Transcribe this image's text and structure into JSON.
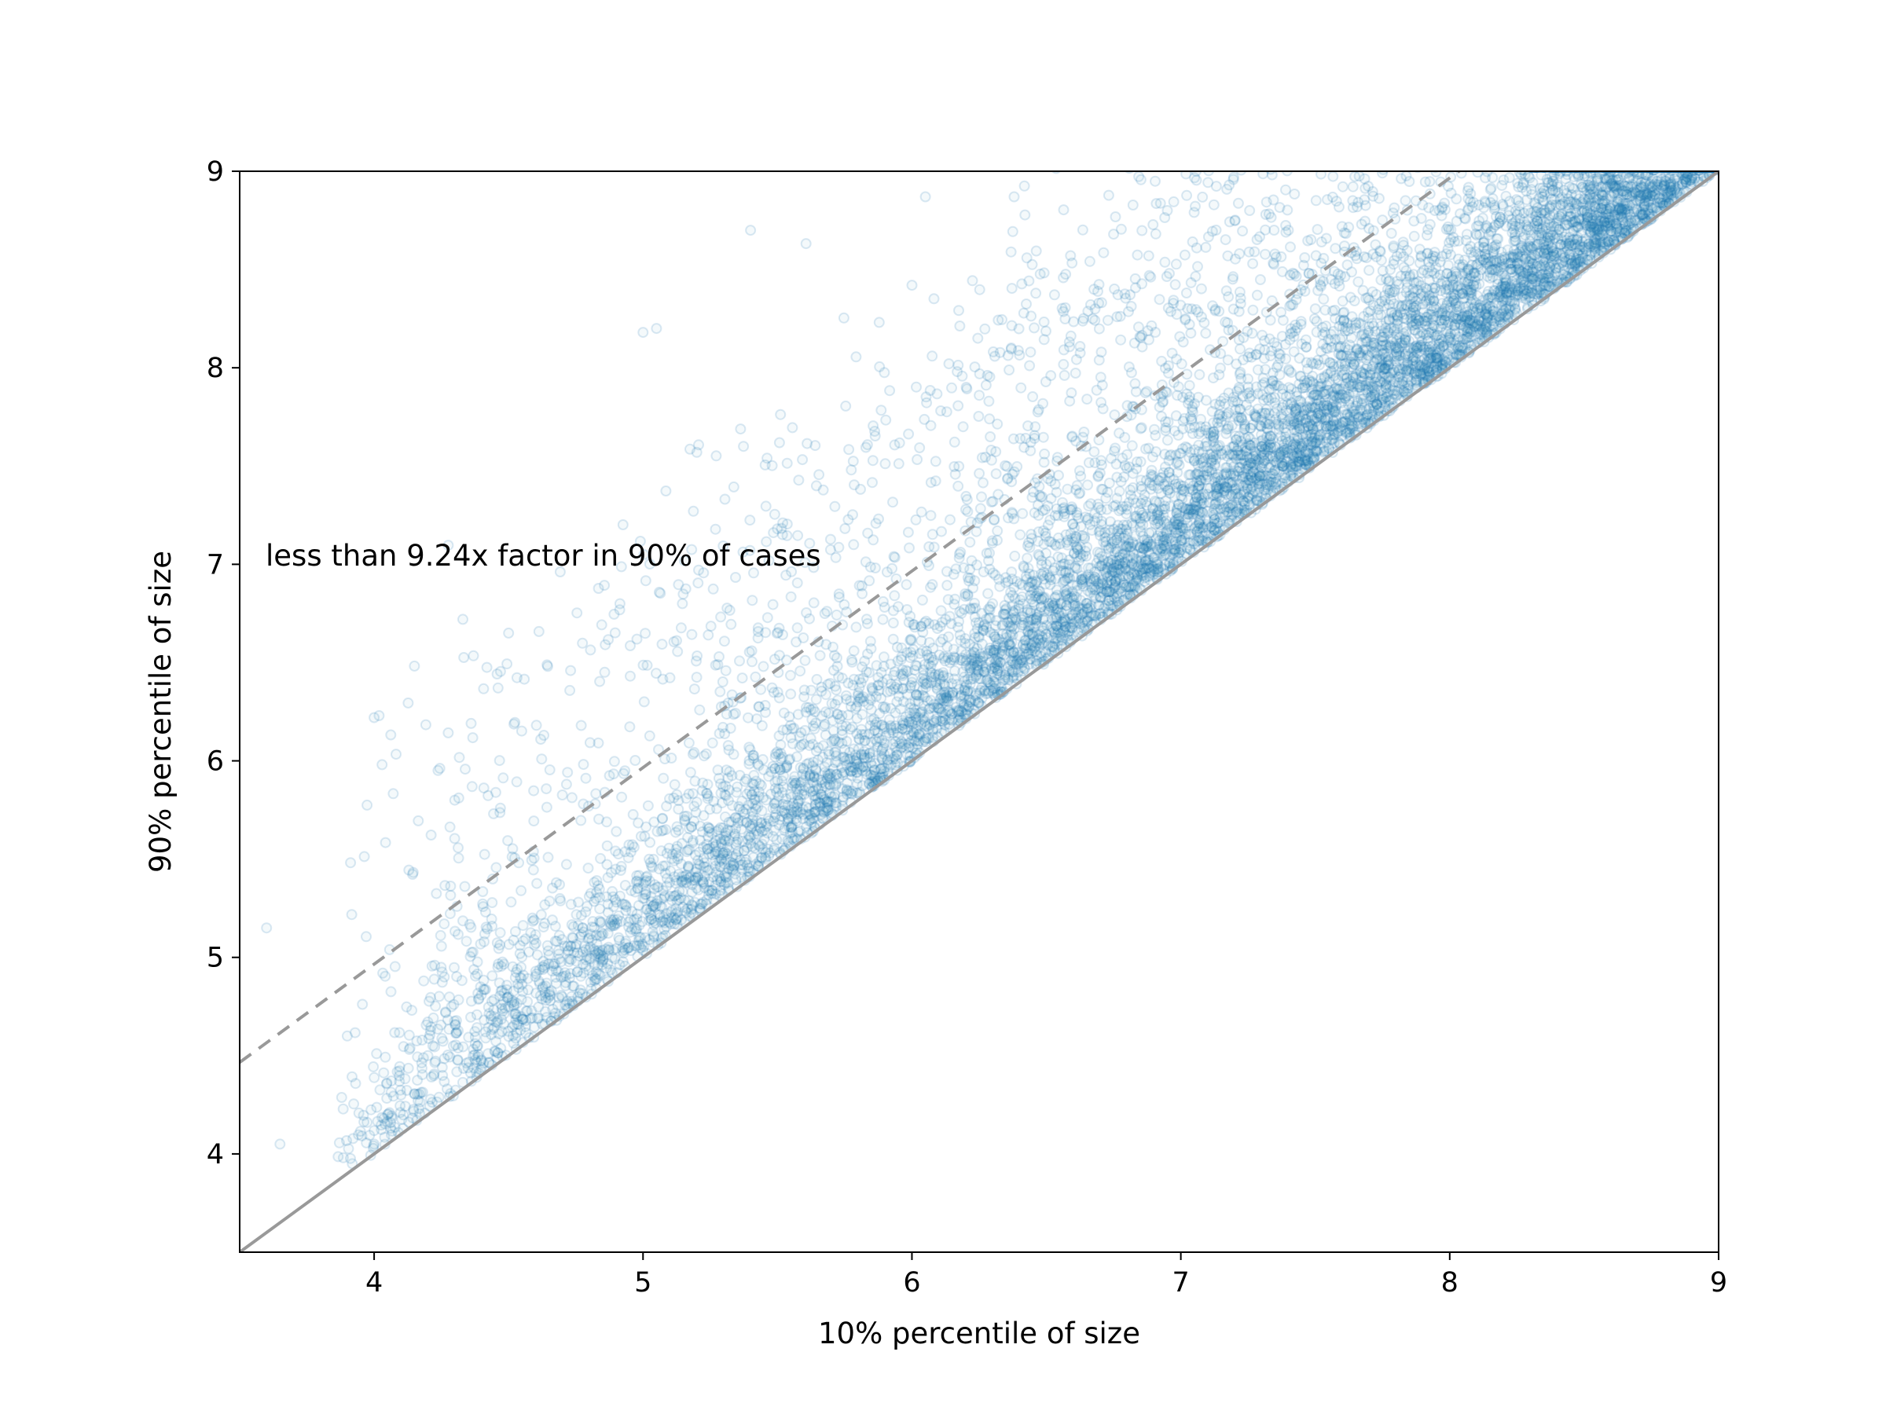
{
  "chart_data": {
    "type": "scatter",
    "title": "",
    "xlabel": "10% percentile of size",
    "ylabel": "90% percentile of size",
    "xlim": [
      3.5,
      9
    ],
    "ylim": [
      3.5,
      9
    ],
    "xticks": [
      4,
      5,
      6,
      7,
      8,
      9
    ],
    "yticks": [
      4,
      5,
      6,
      7,
      8,
      9
    ],
    "grid": false,
    "colors": {
      "points": "#1f77b4",
      "reference_lines": "#999999"
    },
    "point_alpha": 0.08,
    "reference_lines": [
      {
        "style": "solid",
        "slope": 1,
        "intercept": 0
      },
      {
        "style": "dashed",
        "slope": 1,
        "intercept": 0.9657
      }
    ],
    "annotation": {
      "text": "less than 9.24x factor in 90% of cases",
      "x": 3.6,
      "y": 7.05
    },
    "point_cloud": {
      "count": 9000,
      "x_range": [
        3.5,
        9
      ],
      "y_minus_x_range": [
        0,
        3.6
      ],
      "description_of_points": [
        [
          4.0,
          4.05
        ],
        [
          4.05,
          4.2
        ],
        [
          4.1,
          4.3
        ],
        [
          4.2,
          4.5
        ],
        [
          4.5,
          4.8
        ],
        [
          4.8,
          5.1
        ],
        [
          5.0,
          5.3
        ],
        [
          5.3,
          5.6
        ],
        [
          5.5,
          5.9
        ],
        [
          5.8,
          6.3
        ],
        [
          6.0,
          6.4
        ],
        [
          6.3,
          6.8
        ],
        [
          6.5,
          7.0
        ],
        [
          6.8,
          7.2
        ],
        [
          7.0,
          7.4
        ],
        [
          7.3,
          7.6
        ],
        [
          7.5,
          7.8
        ],
        [
          7.8,
          8.1
        ],
        [
          8.0,
          8.4
        ],
        [
          8.3,
          8.7
        ],
        [
          8.5,
          8.8
        ],
        [
          8.7,
          8.95
        ],
        [
          8.9,
          9.0
        ],
        [
          3.9,
          4.6
        ],
        [
          4.3,
          5.8
        ],
        [
          5.0,
          8.18
        ],
        [
          5.05,
          8.2
        ],
        [
          5.4,
          8.7
        ],
        [
          6.05,
          8.87
        ],
        [
          6.38,
          8.87
        ],
        [
          6.95,
          8.8
        ],
        [
          6.75,
          8.68
        ],
        [
          7.4,
          8.7
        ],
        [
          3.6,
          5.15
        ],
        [
          3.65,
          4.05
        ],
        [
          4.0,
          6.22
        ],
        [
          5.2,
          7.57
        ],
        [
          4.5,
          6.65
        ],
        [
          6.0,
          8.42
        ]
      ]
    }
  }
}
